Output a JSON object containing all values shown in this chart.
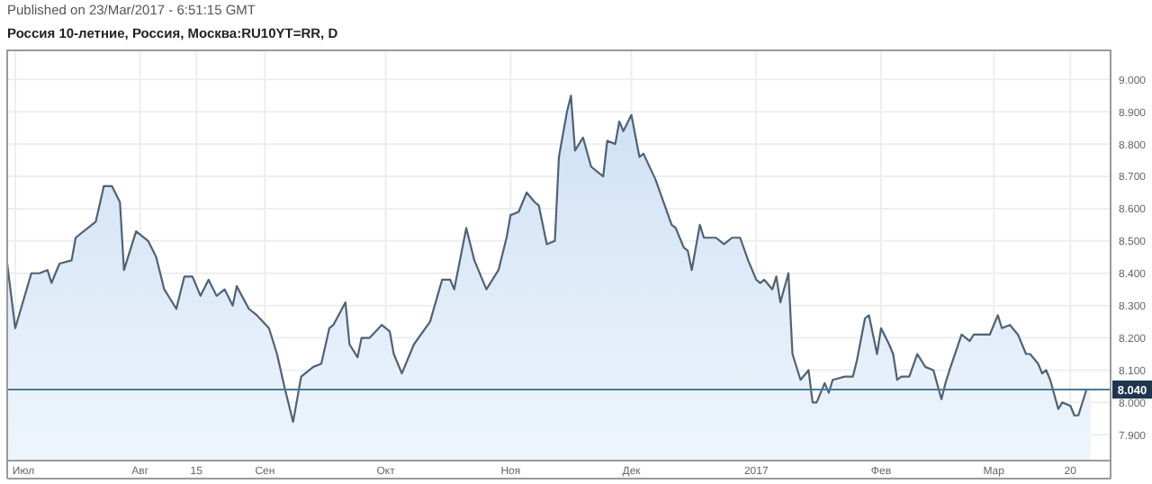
{
  "chart_data": {
    "type": "area",
    "title": "Россия 10-летние, Россия, Москва:RU10YT=RR, D",
    "annotations": [
      "Published on 23/Mar/2017 - 6:51:15 GMT"
    ],
    "x": [
      "2016-06-29",
      "2016-07-01",
      "2016-07-05",
      "2016-07-07",
      "2016-07-09",
      "2016-07-10",
      "2016-07-12",
      "2016-07-15",
      "2016-07-16",
      "2016-07-21",
      "2016-07-23",
      "2016-07-25",
      "2016-07-27",
      "2016-07-28",
      "2016-07-31",
      "2016-08-03",
      "2016-08-05",
      "2016-08-07",
      "2016-08-10",
      "2016-08-12",
      "2016-08-14",
      "2016-08-16",
      "2016-08-18",
      "2016-08-20",
      "2016-08-22",
      "2016-08-24",
      "2016-08-25",
      "2016-08-28",
      "2016-08-30",
      "2016-09-02",
      "2016-09-04",
      "2016-09-06",
      "2016-09-08",
      "2016-09-10",
      "2016-09-13",
      "2016-09-15",
      "2016-09-17",
      "2016-09-18",
      "2016-09-21",
      "2016-09-22",
      "2016-09-24",
      "2016-09-25",
      "2016-09-27",
      "2016-09-30",
      "2016-10-02",
      "2016-10-03",
      "2016-10-05",
      "2016-10-08",
      "2016-10-12",
      "2016-10-15",
      "2016-10-17",
      "2016-10-18",
      "2016-10-21",
      "2016-10-22",
      "2016-10-23",
      "2016-10-24",
      "2016-10-26",
      "2016-10-29",
      "2016-10-31",
      "2016-11-01",
      "2016-11-03",
      "2016-11-05",
      "2016-11-07",
      "2016-11-08",
      "2016-11-10",
      "2016-11-12",
      "2016-11-13",
      "2016-11-15",
      "2016-11-16",
      "2016-11-17",
      "2016-11-19",
      "2016-11-21",
      "2016-11-24",
      "2016-11-25",
      "2016-11-27",
      "2016-11-28",
      "2016-11-29",
      "2016-12-01",
      "2016-12-03",
      "2016-12-04",
      "2016-12-07",
      "2016-12-09",
      "2016-12-11",
      "2016-12-12",
      "2016-12-14",
      "2016-12-15",
      "2016-12-16",
      "2016-12-18",
      "2016-12-19",
      "2016-12-22",
      "2016-12-24",
      "2016-12-26",
      "2016-12-28",
      "2016-12-30",
      "2017-01-01",
      "2017-01-02",
      "2017-01-03",
      "2017-01-05",
      "2017-01-06",
      "2017-01-07",
      "2017-01-09",
      "2017-01-10",
      "2017-01-12",
      "2017-01-14",
      "2017-01-15",
      "2017-01-16",
      "2017-01-18",
      "2017-01-19",
      "2017-01-20",
      "2017-01-23",
      "2017-01-25",
      "2017-01-26",
      "2017-01-28",
      "2017-01-29",
      "2017-01-31",
      "2017-02-01",
      "2017-02-03",
      "2017-02-04",
      "2017-02-05",
      "2017-02-06",
      "2017-02-08",
      "2017-02-10",
      "2017-02-12",
      "2017-02-14",
      "2017-02-16",
      "2017-02-17",
      "2017-02-18",
      "2017-02-21",
      "2017-02-23",
      "2017-02-24",
      "2017-02-28",
      "2017-03-02",
      "2017-03-03",
      "2017-03-05",
      "2017-03-07",
      "2017-03-09",
      "2017-03-10",
      "2017-03-12",
      "2017-03-13",
      "2017-03-14",
      "2017-03-15",
      "2017-03-17",
      "2017-03-18",
      "2017-03-20",
      "2017-03-21",
      "2017-03-22",
      "2017-03-24",
      "2017-03-25"
    ],
    "series": [
      {
        "color": "#4f6275",
        "values": [
          8.43,
          8.23,
          8.4,
          8.4,
          8.41,
          8.37,
          8.43,
          8.44,
          8.51,
          8.56,
          8.67,
          8.67,
          8.62,
          8.41,
          8.53,
          8.5,
          8.45,
          8.35,
          8.29,
          8.39,
          8.39,
          8.33,
          8.38,
          8.33,
          8.35,
          8.3,
          8.36,
          8.29,
          8.27,
          8.23,
          8.15,
          8.04,
          7.94,
          8.08,
          8.11,
          8.12,
          8.23,
          8.24,
          8.31,
          8.18,
          8.14,
          8.2,
          8.2,
          8.24,
          8.22,
          8.15,
          8.09,
          8.18,
          8.25,
          8.38,
          8.38,
          8.35,
          8.54,
          8.49,
          8.44,
          8.41,
          8.35,
          8.41,
          8.51,
          8.58,
          8.59,
          8.65,
          8.62,
          8.61,
          8.49,
          8.5,
          8.76,
          8.9,
          8.95,
          8.78,
          8.82,
          8.73,
          8.7,
          8.81,
          8.8,
          8.87,
          8.84,
          8.89,
          8.76,
          8.77,
          8.69,
          8.62,
          8.55,
          8.54,
          8.48,
          8.47,
          8.41,
          8.55,
          8.51,
          8.51,
          8.49,
          8.51,
          8.51,
          8.44,
          8.38,
          8.37,
          8.38,
          8.35,
          8.39,
          8.31,
          8.4,
          8.15,
          8.07,
          8.1,
          8.0,
          8.0,
          8.06,
          8.03,
          8.07,
          8.08,
          8.08,
          8.13,
          8.26,
          8.27,
          8.15,
          8.23,
          8.18,
          8.15,
          8.07,
          8.08,
          8.08,
          8.15,
          8.11,
          8.1,
          8.01,
          8.06,
          8.1,
          8.21,
          8.19,
          8.21,
          8.21,
          8.27,
          8.23,
          8.24,
          8.21,
          8.15,
          8.15,
          8.12,
          8.09,
          8.1,
          8.07,
          7.98,
          8.0,
          7.99,
          7.96,
          7.96,
          8.04,
          8.04
        ]
      }
    ],
    "xlim": [
      "2016-06-29",
      "2017-03-30"
    ],
    "xticks": [
      {
        "value": "2016-07-01",
        "label": "Июл"
      },
      {
        "value": "2016-08-01",
        "label": "Авг"
      },
      {
        "value": "2016-08-15",
        "label": "15"
      },
      {
        "value": "2016-09-01",
        "label": "Сен"
      },
      {
        "value": "2016-10-01",
        "label": "Окт"
      },
      {
        "value": "2016-11-01",
        "label": "Ноя"
      },
      {
        "value": "2016-12-01",
        "label": "Дек"
      },
      {
        "value": "2017-01-01",
        "label": "2017"
      },
      {
        "value": "2017-02-01",
        "label": "Фев"
      },
      {
        "value": "2017-03-01",
        "label": "Мар"
      },
      {
        "value": "2017-03-20",
        "label": "20"
      }
    ],
    "ylim": [
      7.82,
      9.09
    ],
    "yticks": [
      {
        "value": 7.9,
        "label": "7.900"
      },
      {
        "value": 8.0,
        "label": "8.000"
      },
      {
        "value": 8.1,
        "label": "8.100"
      },
      {
        "value": 8.2,
        "label": "8.200"
      },
      {
        "value": 8.3,
        "label": "8.300"
      },
      {
        "value": 8.4,
        "label": "8.400"
      },
      {
        "value": 8.5,
        "label": "8.500"
      },
      {
        "value": 8.6,
        "label": "8.600"
      },
      {
        "value": 8.7,
        "label": "8.700"
      },
      {
        "value": 8.8,
        "label": "8.800"
      },
      {
        "value": 8.9,
        "label": "8.900"
      },
      {
        "value": 9.0,
        "label": "9.000"
      }
    ],
    "ref_lines": [
      {
        "axis": "y",
        "value": 8.04,
        "label": "8.040",
        "color": "#4f7896"
      }
    ],
    "grid": true
  }
}
